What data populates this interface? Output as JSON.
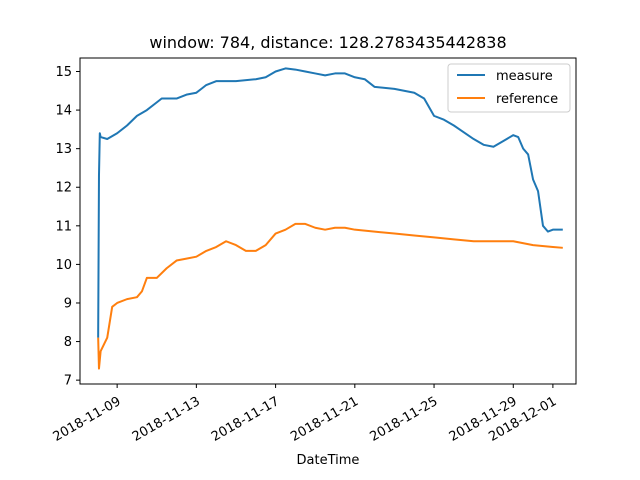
{
  "chart_data": {
    "type": "line",
    "title": "window: 784, distance: 128.2783435442838",
    "xlabel": "DateTime",
    "ylabel": "",
    "x_axis_type": "datetime",
    "xlim": [
      "2018-11-07 03:00",
      "2018-12-02 04:00"
    ],
    "ylim": [
      6.9,
      15.35
    ],
    "x_ticks": [
      {
        "date": "2018-11-09",
        "label": "2018-11-09"
      },
      {
        "date": "2018-11-13",
        "label": "2018-11-13"
      },
      {
        "date": "2018-11-17",
        "label": "2018-11-17"
      },
      {
        "date": "2018-11-21",
        "label": "2018-11-21"
      },
      {
        "date": "2018-11-25",
        "label": "2018-11-25"
      },
      {
        "date": "2018-11-29",
        "label": "2018-11-29"
      },
      {
        "date": "2018-12-01",
        "label": "2018-12-01"
      }
    ],
    "y_ticks": [
      7,
      8,
      9,
      10,
      11,
      12,
      13,
      14,
      15
    ],
    "grid": false,
    "legend": {
      "position": "top-right"
    },
    "series": [
      {
        "name": "measure",
        "color": "#1f77b4",
        "points": [
          [
            "2018-11-08 01:00",
            8.1
          ],
          [
            "2018-11-08 02:00",
            12.3
          ],
          [
            "2018-11-08 03:00",
            13.4
          ],
          [
            "2018-11-08 04:00",
            13.3
          ],
          [
            "2018-11-08 12:00",
            13.25
          ],
          [
            "2018-11-09 00:00",
            13.4
          ],
          [
            "2018-11-09 12:00",
            13.6
          ],
          [
            "2018-11-10 00:00",
            13.85
          ],
          [
            "2018-11-10 12:00",
            14.0
          ],
          [
            "2018-11-11 00:00",
            14.2
          ],
          [
            "2018-11-11 06:00",
            14.3
          ],
          [
            "2018-11-12 00:00",
            14.3
          ],
          [
            "2018-11-12 12:00",
            14.4
          ],
          [
            "2018-11-13 00:00",
            14.45
          ],
          [
            "2018-11-13 06:00",
            14.55
          ],
          [
            "2018-11-13 12:00",
            14.65
          ],
          [
            "2018-11-14 00:00",
            14.75
          ],
          [
            "2018-11-15 00:00",
            14.75
          ],
          [
            "2018-11-16 00:00",
            14.8
          ],
          [
            "2018-11-16 12:00",
            14.85
          ],
          [
            "2018-11-17 00:00",
            15.0
          ],
          [
            "2018-11-17 12:00",
            15.08
          ],
          [
            "2018-11-18 00:00",
            15.05
          ],
          [
            "2018-11-18 12:00",
            15.0
          ],
          [
            "2018-11-19 00:00",
            14.95
          ],
          [
            "2018-11-19 12:00",
            14.9
          ],
          [
            "2018-11-20 00:00",
            14.95
          ],
          [
            "2018-11-20 12:00",
            14.95
          ],
          [
            "2018-11-21 00:00",
            14.85
          ],
          [
            "2018-11-21 12:00",
            14.8
          ],
          [
            "2018-11-22 00:00",
            14.6
          ],
          [
            "2018-11-23 00:00",
            14.55
          ],
          [
            "2018-11-24 00:00",
            14.45
          ],
          [
            "2018-11-24 12:00",
            14.3
          ],
          [
            "2018-11-25 00:00",
            13.85
          ],
          [
            "2018-11-25 12:00",
            13.75
          ],
          [
            "2018-11-26 00:00",
            13.6
          ],
          [
            "2018-11-27 00:00",
            13.25
          ],
          [
            "2018-11-27 12:00",
            13.1
          ],
          [
            "2018-11-28 00:00",
            13.05
          ],
          [
            "2018-11-28 12:00",
            13.2
          ],
          [
            "2018-11-29 00:00",
            13.35
          ],
          [
            "2018-11-29 06:00",
            13.3
          ],
          [
            "2018-11-29 12:00",
            13.0
          ],
          [
            "2018-11-29 18:00",
            12.85
          ],
          [
            "2018-11-30 00:00",
            12.2
          ],
          [
            "2018-11-30 06:00",
            11.9
          ],
          [
            "2018-11-30 12:00",
            11.0
          ],
          [
            "2018-11-30 18:00",
            10.85
          ],
          [
            "2018-12-01 00:00",
            10.9
          ],
          [
            "2018-12-01 06:00",
            10.9
          ],
          [
            "2018-12-01 12:00",
            10.9
          ]
        ]
      },
      {
        "name": "reference",
        "color": "#ff7f0e",
        "points": [
          [
            "2018-11-08 01:00",
            8.1
          ],
          [
            "2018-11-08 02:00",
            7.3
          ],
          [
            "2018-11-08 04:00",
            7.75
          ],
          [
            "2018-11-08 12:00",
            8.1
          ],
          [
            "2018-11-08 18:00",
            8.9
          ],
          [
            "2018-11-09 00:00",
            9.0
          ],
          [
            "2018-11-09 12:00",
            9.1
          ],
          [
            "2018-11-10 00:00",
            9.15
          ],
          [
            "2018-11-10 06:00",
            9.3
          ],
          [
            "2018-11-10 12:00",
            9.65
          ],
          [
            "2018-11-11 00:00",
            9.65
          ],
          [
            "2018-11-11 12:00",
            9.9
          ],
          [
            "2018-11-12 00:00",
            10.1
          ],
          [
            "2018-11-12 12:00",
            10.15
          ],
          [
            "2018-11-13 00:00",
            10.2
          ],
          [
            "2018-11-13 12:00",
            10.35
          ],
          [
            "2018-11-14 00:00",
            10.45
          ],
          [
            "2018-11-14 12:00",
            10.6
          ],
          [
            "2018-11-15 00:00",
            10.5
          ],
          [
            "2018-11-15 12:00",
            10.35
          ],
          [
            "2018-11-16 00:00",
            10.35
          ],
          [
            "2018-11-16 12:00",
            10.5
          ],
          [
            "2018-11-17 00:00",
            10.8
          ],
          [
            "2018-11-17 12:00",
            10.9
          ],
          [
            "2018-11-18 00:00",
            11.05
          ],
          [
            "2018-11-18 12:00",
            11.05
          ],
          [
            "2018-11-19 00:00",
            10.95
          ],
          [
            "2018-11-19 12:00",
            10.9
          ],
          [
            "2018-11-20 00:00",
            10.95
          ],
          [
            "2018-11-20 12:00",
            10.95
          ],
          [
            "2018-11-21 00:00",
            10.9
          ],
          [
            "2018-11-22 00:00",
            10.85
          ],
          [
            "2018-11-23 00:00",
            10.8
          ],
          [
            "2018-11-24 00:00",
            10.75
          ],
          [
            "2018-11-25 00:00",
            10.7
          ],
          [
            "2018-11-26 00:00",
            10.65
          ],
          [
            "2018-11-27 00:00",
            10.6
          ],
          [
            "2018-11-28 00:00",
            10.6
          ],
          [
            "2018-11-29 00:00",
            10.6
          ],
          [
            "2018-11-30 00:00",
            10.5
          ],
          [
            "2018-12-01 00:00",
            10.45
          ],
          [
            "2018-12-01 12:00",
            10.43
          ]
        ]
      }
    ]
  }
}
